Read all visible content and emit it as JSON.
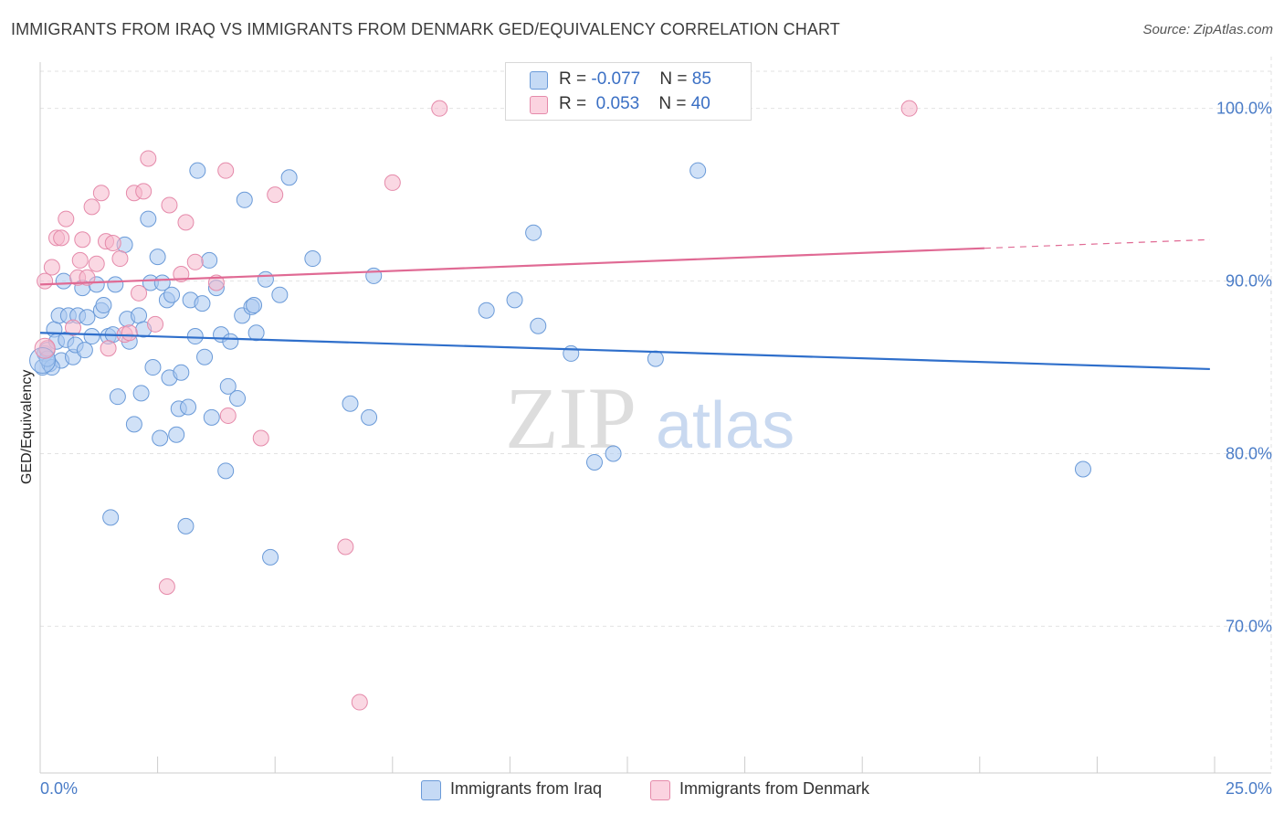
{
  "title": "IMMIGRANTS FROM IRAQ VS IMMIGRANTS FROM DENMARK GED/EQUIVALENCY CORRELATION CHART",
  "source": "Source: ZipAtlas.com",
  "watermark": {
    "zip": "ZIP",
    "atlas": "atlas"
  },
  "legend_stats": [
    {
      "r_label": "R = ",
      "r_value": "-0.077",
      "n_label": "N = ",
      "n_value": "85",
      "color": "#a9c8f0"
    },
    {
      "r_label": "R = ",
      "r_value": " 0.053",
      "n_label": "N = ",
      "n_value": "40",
      "color": "#f5b8cc"
    }
  ],
  "chart_data": {
    "type": "scatter",
    "title": "IMMIGRANTS FROM IRAQ VS IMMIGRANTS FROM DENMARK GED/EQUIVALENCY CORRELATION CHART",
    "xlabel": "",
    "ylabel": "GED/Equivalency",
    "xlim": [
      0,
      25
    ],
    "ylim": [
      61.5,
      103
    ],
    "x_tick_labels": [
      {
        "value": 0,
        "label": "0.0%"
      },
      {
        "value": 25,
        "label": "25.0%"
      }
    ],
    "y_tick_labels": [
      {
        "value": 100,
        "label": "100.0%"
      },
      {
        "value": 90,
        "label": "90.0%"
      },
      {
        "value": 80,
        "label": "80.0%"
      },
      {
        "value": 70,
        "label": "70.0%"
      }
    ],
    "grid": true,
    "series": [
      {
        "name": "Immigrants from Iraq",
        "color": "#a9c8f0",
        "stroke": "#6a9ad8",
        "trend": {
          "x": [
            0,
            24.9
          ],
          "y": [
            87.0,
            84.9
          ],
          "color": "#2f6fcb"
        },
        "points": [
          [
            0.05,
            85.0
          ],
          [
            0.1,
            85.8
          ],
          [
            0.15,
            86.0
          ],
          [
            0.2,
            85.2
          ],
          [
            0.3,
            87.2
          ],
          [
            0.35,
            86.5
          ],
          [
            0.4,
            88.0
          ],
          [
            0.45,
            85.4
          ],
          [
            0.5,
            90.0
          ],
          [
            0.55,
            86.6
          ],
          [
            0.6,
            88.0
          ],
          [
            0.7,
            85.6
          ],
          [
            0.75,
            86.3
          ],
          [
            0.8,
            88.0
          ],
          [
            0.9,
            89.6
          ],
          [
            1.0,
            87.9
          ],
          [
            1.1,
            86.8
          ],
          [
            1.2,
            89.8
          ],
          [
            1.3,
            88.3
          ],
          [
            1.35,
            88.6
          ],
          [
            1.45,
            86.8
          ],
          [
            1.5,
            76.3
          ],
          [
            1.6,
            89.8
          ],
          [
            1.65,
            83.3
          ],
          [
            1.8,
            92.1
          ],
          [
            1.85,
            87.8
          ],
          [
            1.9,
            86.5
          ],
          [
            2.0,
            81.7
          ],
          [
            2.1,
            88.0
          ],
          [
            2.15,
            83.5
          ],
          [
            2.2,
            87.2
          ],
          [
            2.3,
            93.6
          ],
          [
            2.35,
            89.9
          ],
          [
            2.4,
            85.0
          ],
          [
            2.5,
            91.4
          ],
          [
            2.55,
            80.9
          ],
          [
            2.6,
            89.9
          ],
          [
            2.7,
            88.9
          ],
          [
            2.75,
            84.4
          ],
          [
            2.8,
            89.2
          ],
          [
            2.9,
            81.1
          ],
          [
            2.95,
            82.6
          ],
          [
            3.0,
            84.7
          ],
          [
            3.1,
            75.8
          ],
          [
            3.15,
            82.7
          ],
          [
            3.2,
            88.9
          ],
          [
            3.3,
            86.8
          ],
          [
            3.35,
            96.4
          ],
          [
            3.45,
            88.7
          ],
          [
            3.5,
            85.6
          ],
          [
            3.6,
            91.2
          ],
          [
            3.65,
            82.1
          ],
          [
            3.75,
            89.6
          ],
          [
            3.85,
            86.9
          ],
          [
            3.95,
            79.0
          ],
          [
            4.0,
            83.9
          ],
          [
            4.05,
            86.5
          ],
          [
            4.2,
            83.2
          ],
          [
            4.3,
            88.0
          ],
          [
            4.35,
            94.7
          ],
          [
            4.5,
            88.5
          ],
          [
            4.6,
            87.0
          ],
          [
            4.55,
            88.6
          ],
          [
            4.8,
            90.1
          ],
          [
            4.9,
            74.0
          ],
          [
            5.1,
            89.2
          ],
          [
            5.3,
            96.0
          ],
          [
            5.8,
            91.3
          ],
          [
            6.6,
            82.9
          ],
          [
            7.0,
            82.1
          ],
          [
            7.1,
            90.3
          ],
          [
            9.5,
            88.3
          ],
          [
            10.1,
            88.9
          ],
          [
            10.5,
            92.8
          ],
          [
            10.6,
            87.4
          ],
          [
            11.3,
            85.8
          ],
          [
            11.8,
            79.5
          ],
          [
            12.2,
            80.0
          ],
          [
            13.1,
            85.5
          ],
          [
            14.0,
            96.4
          ],
          [
            22.2,
            79.1
          ],
          [
            0.25,
            85.0
          ],
          [
            0.15,
            85.5
          ],
          [
            1.55,
            86.9
          ],
          [
            0.95,
            86.0
          ]
        ]
      },
      {
        "name": "Immigrants from Denmark",
        "color": "#f5b8cc",
        "stroke": "#e58aaa",
        "trend": {
          "x": [
            0,
            20.1
          ],
          "y": [
            89.8,
            91.9
          ],
          "color": "#e06a94",
          "dash_x": [
            20.1,
            24.9
          ],
          "dash_y": [
            91.9,
            92.4
          ]
        },
        "points": [
          [
            0.1,
            90.0
          ],
          [
            0.15,
            86.1
          ],
          [
            0.25,
            90.8
          ],
          [
            0.35,
            92.5
          ],
          [
            0.45,
            92.5
          ],
          [
            0.55,
            93.6
          ],
          [
            0.7,
            87.3
          ],
          [
            0.8,
            90.2
          ],
          [
            0.85,
            91.2
          ],
          [
            0.9,
            92.4
          ],
          [
            1.0,
            90.2
          ],
          [
            1.1,
            94.3
          ],
          [
            1.2,
            91.0
          ],
          [
            1.3,
            95.1
          ],
          [
            1.4,
            92.3
          ],
          [
            1.45,
            86.1
          ],
          [
            1.55,
            92.2
          ],
          [
            1.7,
            91.3
          ],
          [
            1.8,
            86.9
          ],
          [
            1.9,
            87.0
          ],
          [
            2.0,
            95.1
          ],
          [
            2.1,
            89.3
          ],
          [
            2.2,
            95.2
          ],
          [
            2.3,
            97.1
          ],
          [
            2.45,
            87.5
          ],
          [
            2.7,
            72.3
          ],
          [
            2.75,
            94.4
          ],
          [
            3.0,
            90.4
          ],
          [
            3.1,
            93.4
          ],
          [
            3.3,
            91.1
          ],
          [
            3.75,
            89.9
          ],
          [
            3.95,
            96.4
          ],
          [
            4.0,
            82.2
          ],
          [
            4.7,
            80.9
          ],
          [
            5.0,
            95.0
          ],
          [
            6.5,
            74.6
          ],
          [
            6.8,
            65.6
          ],
          [
            7.5,
            95.7
          ],
          [
            8.5,
            100.0
          ],
          [
            18.5,
            100.0
          ]
        ]
      }
    ]
  }
}
